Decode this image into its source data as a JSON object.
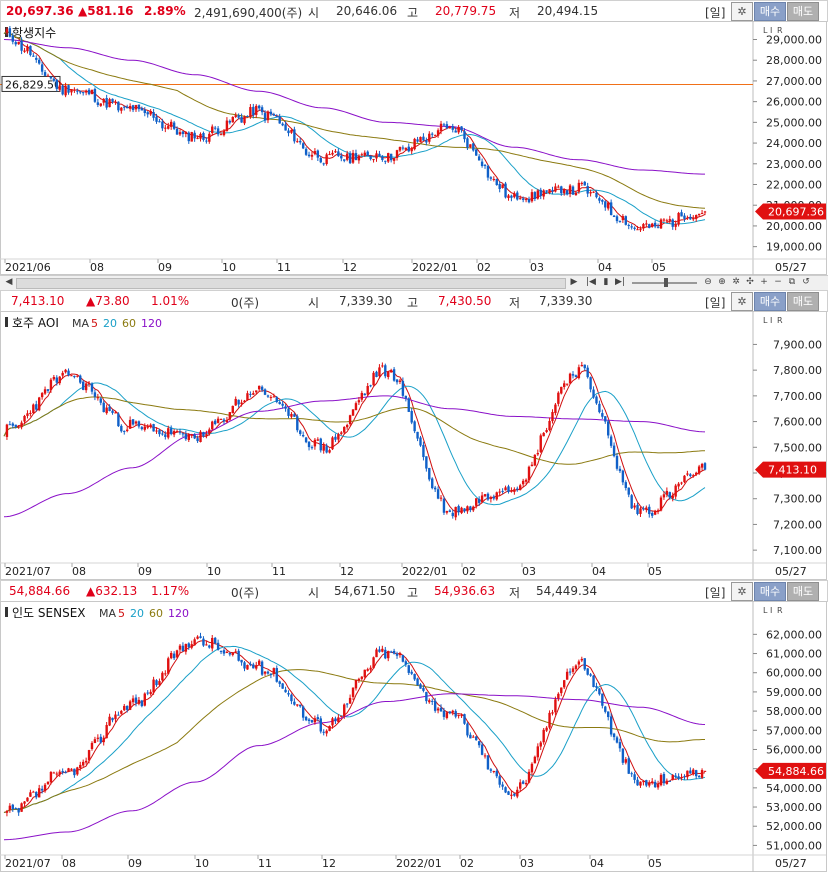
{
  "toolbar": {
    "period_label": "[일]",
    "buy_label": "매수",
    "sell_label": "매도",
    "settings_icon": "gear-icon"
  },
  "panels": [
    {
      "id": "hangseng",
      "quote": {
        "price": "20,697.36",
        "change": "▲581.16",
        "pct": "2.89%",
        "volume": "2,491,690,400(주)",
        "open_label": "시",
        "open": "20,646.06",
        "high_label": "고",
        "high": "20,779.75",
        "low_label": "저",
        "low": "20,494.15"
      },
      "title": "항생지수",
      "ma_legend": [],
      "y_ticks": [
        "29,000.00",
        "28,000.00",
        "27,000.00",
        "26,000.00",
        "25,000.00",
        "24,000.00",
        "23,000.00",
        "22,000.00",
        "21,000.00",
        "20,000.00",
        "19,000.00"
      ],
      "x_labels": [
        "2021/06",
        "08",
        "09",
        "10",
        "11",
        "12",
        "2022/01",
        "02",
        "03",
        "04",
        "05"
      ],
      "date_label": "05/27",
      "last_price_tag": "20,697.36",
      "hline_tag": "26,829.50"
    },
    {
      "id": "asx",
      "quote": {
        "price": "7,413.10",
        "change": "▲73.80",
        "pct": "1.01%",
        "volume": "0(주)",
        "open_label": "시",
        "open": "7,339.30",
        "high_label": "고",
        "high": "7,430.50",
        "low_label": "저",
        "low": "7,339.30"
      },
      "title": "호주 AOI",
      "ma_legend": [
        {
          "text": "MA",
          "color": "#333333"
        },
        {
          "text": "5",
          "color": "#d01010"
        },
        {
          "text": "20",
          "color": "#1aa0c8"
        },
        {
          "text": "60",
          "color": "#8b7a10"
        },
        {
          "text": "120",
          "color": "#8a10c8"
        }
      ],
      "y_ticks": [
        "7,900.00",
        "7,800.00",
        "7,700.00",
        "7,600.00",
        "7,500.00",
        "7,400.00",
        "7,300.00",
        "7,200.00",
        "7,100.00"
      ],
      "x_labels": [
        "2021/07",
        "08",
        "09",
        "10",
        "11",
        "12",
        "2022/01",
        "02",
        "03",
        "04",
        "05"
      ],
      "date_label": "05/27",
      "last_price_tag": "7,413.10"
    },
    {
      "id": "sensex",
      "quote": {
        "price": "54,884.66",
        "change": "▲632.13",
        "pct": "1.17%",
        "volume": "0(주)",
        "open_label": "시",
        "open": "54,671.50",
        "high_label": "고",
        "high": "54,936.63",
        "low_label": "저",
        "low": "54,449.34"
      },
      "title": "인도 SENSEX",
      "ma_legend": [
        {
          "text": "MA",
          "color": "#333333"
        },
        {
          "text": "5",
          "color": "#d01010"
        },
        {
          "text": "20",
          "color": "#1aa0c8"
        },
        {
          "text": "60",
          "color": "#8b7a10"
        },
        {
          "text": "120",
          "color": "#8a10c8"
        }
      ],
      "y_ticks": [
        "62,000.00",
        "61,000.00",
        "60,000.00",
        "59,000.00",
        "58,000.00",
        "57,000.00",
        "56,000.00",
        "55,000.00",
        "54,000.00",
        "53,000.00",
        "52,000.00",
        "51,000.00"
      ],
      "x_labels": [
        "2021/07",
        "08",
        "09",
        "10",
        "11",
        "12",
        "2022/01",
        "02",
        "03",
        "04",
        "05"
      ],
      "date_label": "05/27",
      "last_price_tag": "54,884.66"
    }
  ],
  "chart_data": [
    {
      "type": "line",
      "title": "항생지수",
      "x": [
        "2021/06",
        "08",
        "09",
        "10",
        "11",
        "12",
        "2022/01",
        "02",
        "03",
        "04",
        "05",
        "05/27"
      ],
      "series": [
        {
          "values": [
            29200,
            26600,
            25600,
            24300,
            25500,
            23300,
            23400,
            24700,
            21400,
            21800,
            19900,
            20697
          ]
        },
        {
          "name": "MA120",
          "values": [
            29000,
            28600,
            28000,
            27300,
            26500,
            25700,
            25000,
            24800,
            23800,
            23200,
            22700,
            22500
          ]
        }
      ],
      "ylim": [
        18500,
        29700
      ],
      "hline": 26829.5
    },
    {
      "type": "line",
      "title": "호주 AOI",
      "x": [
        "2021/07",
        "08",
        "09",
        "10",
        "11",
        "12",
        "2022/01",
        "02",
        "03",
        "04",
        "05",
        "05/27"
      ],
      "series": [
        {
          "values": [
            7560,
            7780,
            7580,
            7540,
            7720,
            7500,
            7800,
            7250,
            7350,
            7800,
            7250,
            7413
          ]
        },
        {
          "name": "MA 120",
          "values": [
            7230,
            7320,
            7420,
            7550,
            7640,
            7680,
            7700,
            7650,
            7620,
            7610,
            7600,
            7560
          ]
        }
      ],
      "ylim": [
        7050,
        7960
      ]
    },
    {
      "type": "line",
      "title": "인도 SENSEX",
      "x": [
        "2021/07",
        "08",
        "09",
        "10",
        "11",
        "12",
        "2022/01",
        "02",
        "03",
        "04",
        "05",
        "05/27"
      ],
      "series": [
        {
          "values": [
            52600,
            54800,
            58400,
            61700,
            60300,
            57200,
            61100,
            57800,
            53800,
            60500,
            54200,
            54884
          ]
        },
        {
          "name": "MA 120",
          "values": [
            51300,
            51700,
            52800,
            54300,
            56200,
            57400,
            58500,
            58900,
            58800,
            58600,
            58200,
            57300
          ]
        }
      ],
      "ylim": [
        50500,
        62800
      ]
    }
  ]
}
